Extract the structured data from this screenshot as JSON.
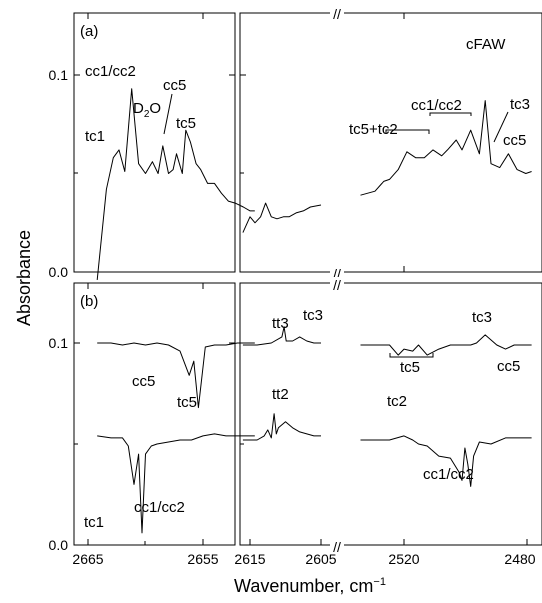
{
  "chart_data": {
    "type": "line",
    "xlabel": "Wavenumber, cm",
    "xlabel_sup": "−1",
    "ylabel": "Absorbance",
    "x_ticks_left": [
      "2665",
      "2655"
    ],
    "x_ticks_mid": [
      "2615",
      "2605"
    ],
    "x_ticks_right": [
      "2520",
      "2480"
    ],
    "axis_break": "//",
    "panels": [
      {
        "label": "(a)",
        "y_ticks": [
          "0.0",
          "0.1"
        ],
        "ylim": [
          0.0,
          0.13
        ],
        "annotations": [
          "tc1",
          "cc1/cc2",
          "D",
          "2",
          "O",
          "cc5",
          "tc5",
          "tc5+tc2",
          "cc1/cc2",
          "cFAW",
          "tc3",
          "cc5"
        ],
        "series": [
          {
            "segment": "left",
            "x": [
              2664.2,
              2663.4,
              2662.8,
              2662.3,
              2661.8,
              2661.2,
              2660.6,
              2660.0,
              2659.4,
              2658.9,
              2658.5,
              2658.0,
              2657.6,
              2657.3,
              2656.8,
              2656.5,
              2656.1,
              2655.6,
              2655.2,
              2654.6,
              2654.0,
              2653.4,
              2652.8,
              2652.2,
              2651.5,
              2650.9,
              2650.5
            ],
            "y": [
              -0.004,
              0.042,
              0.058,
              0.062,
              0.051,
              0.093,
              0.055,
              0.05,
              0.056,
              0.05,
              0.064,
              0.05,
              0.052,
              0.06,
              0.05,
              0.072,
              0.066,
              0.055,
              0.052,
              0.045,
              0.045,
              0.04,
              0.036,
              0.035,
              0.033,
              0.031,
              0.031
            ]
          },
          {
            "segment": "mid",
            "x": [
              2616.0,
              2615.0,
              2614.3,
              2613.5,
              2612.8,
              2612.0,
              2611.2,
              2610.3,
              2609.5,
              2608.5,
              2607.5,
              2606.5,
              2605.0
            ],
            "y": [
              0.02,
              0.028,
              0.025,
              0.028,
              0.035,
              0.028,
              0.027,
              0.028,
              0.028,
              0.03,
              0.031,
              0.033,
              0.034
            ]
          },
          {
            "segment": "right",
            "x": [
              2535,
              2530,
              2527,
              2525,
              2522,
              2519,
              2516,
              2513,
              2510,
              2507,
              2505,
              2502,
              2500,
              2497,
              2494,
              2492,
              2490,
              2487,
              2484,
              2481,
              2478,
              2476
            ],
            "y": [
              0.039,
              0.041,
              0.046,
              0.047,
              0.052,
              0.061,
              0.058,
              0.058,
              0.062,
              0.059,
              0.062,
              0.067,
              0.062,
              0.072,
              0.06,
              0.087,
              0.055,
              0.053,
              0.06,
              0.052,
              0.05,
              0.051
            ]
          }
        ]
      },
      {
        "label": "(b)",
        "y_ticks": [
          "0.0",
          "0.1"
        ],
        "ylim": [
          0.0,
          0.13
        ],
        "annotations": [
          "cc5",
          "tc5",
          "tc1",
          "cc1/cc2",
          "tt3",
          "tc3",
          "tc5",
          "tc3",
          "cc5",
          "tt2",
          "tc2",
          "cc1/cc2"
        ],
        "series": [
          {
            "segment": "left",
            "name": "upper",
            "x": [
              2664.2,
              2663.0,
              2662.0,
              2661.0,
              2660.0,
              2659.0,
              2658.0,
              2657.0,
              2656.2,
              2655.8,
              2655.4,
              2654.8,
              2654.0,
              2653.0,
              2652.0,
              2651.0,
              2650.5
            ],
            "y": [
              0.1,
              0.1,
              0.099,
              0.1,
              0.099,
              0.1,
              0.099,
              0.096,
              0.084,
              0.091,
              0.068,
              0.098,
              0.099,
              0.099,
              0.1,
              0.1,
              0.1
            ]
          },
          {
            "segment": "left",
            "name": "lower",
            "x": [
              2664.2,
              2663.0,
              2662.0,
              2661.5,
              2661.0,
              2660.6,
              2660.3,
              2660.0,
              2659.5,
              2659.0,
              2658.0,
              2657.0,
              2656.0,
              2655.0,
              2654.0,
              2653.0,
              2652.0,
              2651.0,
              2650.5
            ],
            "y": [
              0.054,
              0.053,
              0.053,
              0.049,
              0.03,
              0.045,
              0.006,
              0.045,
              0.049,
              0.05,
              0.051,
              0.052,
              0.052,
              0.054,
              0.055,
              0.054,
              0.054,
              0.054,
              0.054
            ]
          },
          {
            "segment": "mid",
            "name": "upper",
            "x": [
              2616.0,
              2614.0,
              2612.0,
              2610.5,
              2610.2,
              2609.9,
              2609.0,
              2608.0,
              2607.0,
              2606.0,
              2605.0
            ],
            "y": [
              0.099,
              0.099,
              0.1,
              0.103,
              0.108,
              0.101,
              0.101,
              0.103,
              0.101,
              0.1,
              0.1
            ]
          },
          {
            "segment": "mid",
            "name": "lower",
            "x": [
              2616.0,
              2614.0,
              2613.0,
              2612.5,
              2612.0,
              2611.6,
              2611.3,
              2611.0,
              2610.0,
              2609.0,
              2608.0,
              2607.0,
              2606.0,
              2605.0
            ],
            "y": [
              0.052,
              0.052,
              0.054,
              0.057,
              0.053,
              0.065,
              0.055,
              0.058,
              0.061,
              0.058,
              0.056,
              0.055,
              0.054,
              0.054
            ]
          },
          {
            "segment": "right",
            "name": "upper",
            "x": [
              2535,
              2530,
              2525,
              2522,
              2520,
              2517,
              2515,
              2512,
              2508,
              2504,
              2500,
              2497,
              2495,
              2492,
              2488,
              2485,
              2482,
              2479,
              2476
            ],
            "y": [
              0.099,
              0.099,
              0.099,
              0.094,
              0.097,
              0.096,
              0.099,
              0.094,
              0.097,
              0.099,
              0.099,
              0.099,
              0.1,
              0.104,
              0.099,
              0.097,
              0.099,
              0.099,
              0.099
            ]
          },
          {
            "segment": "right",
            "name": "lower",
            "x": [
              2535,
              2530,
              2525,
              2520,
              2517,
              2515,
              2512,
              2508,
              2504,
              2501,
              2500,
              2499,
              2498,
              2497,
              2496,
              2494,
              2490,
              2485,
              2480,
              2476
            ],
            "y": [
              0.052,
              0.052,
              0.052,
              0.054,
              0.052,
              0.05,
              0.049,
              0.044,
              0.043,
              0.036,
              0.032,
              0.048,
              0.04,
              0.029,
              0.044,
              0.051,
              0.05,
              0.053,
              0.053,
              0.053
            ]
          }
        ]
      }
    ]
  }
}
